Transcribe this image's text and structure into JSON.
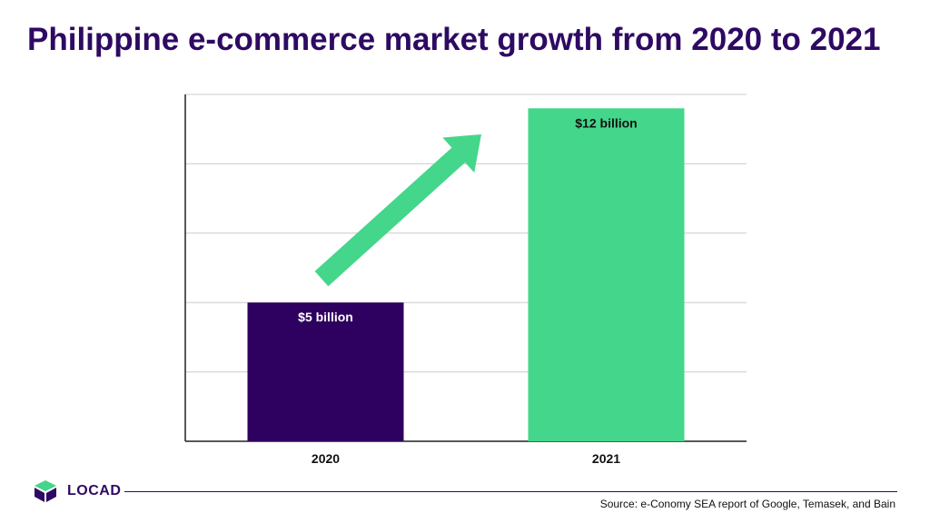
{
  "title": "Philippine e-commerce market growth from 2020 to 2021",
  "colors": {
    "title": "#2e0a63",
    "bar_2020": "#2e0060",
    "bar_2021": "#44d68b",
    "arrow": "#44d68b",
    "grid": "#cccccc",
    "axis": "#222222"
  },
  "chart_data": {
    "type": "bar",
    "categories": [
      "2020",
      "2021"
    ],
    "values": [
      5,
      12
    ],
    "data_labels": [
      "$5 billion",
      "$12 billion"
    ],
    "ylim": [
      0,
      12.5
    ],
    "grid": true,
    "annotations": [
      {
        "type": "arrow",
        "direction": "up-right"
      }
    ]
  },
  "footer": {
    "brand": "LOCAD",
    "logo_icon": "locad-cube-icon",
    "source": "Source: e-Conomy SEA report of Google, Temasek, and Bain"
  }
}
